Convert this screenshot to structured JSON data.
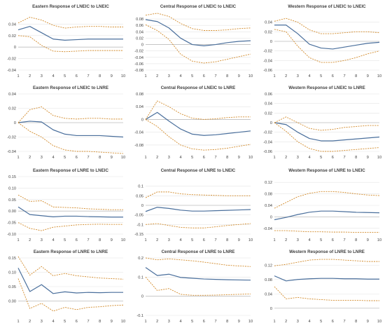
{
  "chart_data": [
    {
      "type": "line",
      "title": "Eastern Response of LNEIC to LNEIC",
      "categories": [
        "1",
        "2",
        "3",
        "4",
        "5",
        "6",
        "7",
        "8",
        "9",
        "10"
      ],
      "ylim": [
        -0.04,
        0.06
      ],
      "yticks": [
        -0.04,
        -0.02,
        0,
        0.02,
        0.04
      ],
      "ytick_labels": [
        "-0.04",
        "-0.02",
        "0",
        "0.02",
        "0.04"
      ],
      "grid": true,
      "series": [
        {
          "role": "response",
          "values": [
            0.03,
            0.036,
            0.025,
            0.014,
            0.012,
            0.013,
            0.014,
            0.014,
            0.014,
            0.014
          ]
        },
        {
          "role": "upper",
          "values": [
            0.042,
            0.052,
            0.047,
            0.038,
            0.033,
            0.035,
            0.036,
            0.036,
            0.035,
            0.035
          ]
        },
        {
          "role": "lower",
          "values": [
            0.02,
            0.018,
            0.003,
            -0.007,
            -0.008,
            -0.007,
            -0.006,
            -0.006,
            -0.006,
            -0.006
          ]
        }
      ]
    },
    {
      "type": "line",
      "title": "Central Response of LNEIC to LNEIC",
      "categories": [
        "1",
        "2",
        "3",
        "4",
        "5",
        "6",
        "7",
        "8",
        "9",
        "10"
      ],
      "ylim": [
        -0.08,
        0.1
      ],
      "yticks": [
        -0.08,
        -0.06,
        -0.04,
        -0.02,
        0,
        0.02,
        0.04,
        0.06,
        0.08
      ],
      "ytick_labels": [
        "-0.08",
        "-0.06",
        "-0.04",
        "-0.02",
        "0",
        "0.02",
        "0.04",
        "0.06",
        "0.08"
      ],
      "grid": true,
      "series": [
        {
          "role": "response",
          "values": [
            0.078,
            0.072,
            0.052,
            0.02,
            0.0,
            -0.004,
            0.0,
            0.006,
            0.01,
            0.012
          ]
        },
        {
          "role": "upper",
          "values": [
            0.092,
            0.098,
            0.088,
            0.066,
            0.05,
            0.044,
            0.044,
            0.046,
            0.05,
            0.052
          ]
        },
        {
          "role": "lower",
          "values": [
            0.062,
            0.044,
            0.016,
            -0.03,
            -0.052,
            -0.058,
            -0.054,
            -0.046,
            -0.038,
            -0.03
          ]
        }
      ]
    },
    {
      "type": "line",
      "title": "Western Response of LNEIC to LNEIC",
      "categories": [
        "1",
        "2",
        "3",
        "4",
        "5",
        "6",
        "7",
        "8",
        "9",
        "10"
      ],
      "ylim": [
        -0.06,
        0.06
      ],
      "yticks": [
        -0.06,
        -0.04,
        -0.02,
        0,
        0.02,
        0.04
      ],
      "ytick_labels": [
        "-0.06",
        "-0.04",
        "-0.02",
        "0",
        "0.02",
        "0.04"
      ],
      "grid": true,
      "series": [
        {
          "role": "response",
          "values": [
            0.034,
            0.034,
            0.016,
            -0.006,
            -0.014,
            -0.016,
            -0.012,
            -0.008,
            -0.004,
            -0.002
          ]
        },
        {
          "role": "upper",
          "values": [
            0.042,
            0.048,
            0.04,
            0.024,
            0.016,
            0.016,
            0.018,
            0.02,
            0.02,
            0.018
          ]
        },
        {
          "role": "lower",
          "values": [
            0.025,
            0.02,
            -0.01,
            -0.034,
            -0.044,
            -0.044,
            -0.04,
            -0.034,
            -0.026,
            -0.02
          ]
        }
      ]
    },
    {
      "type": "line",
      "title": "Eastern Response of LNEIC to LNRE",
      "categories": [
        "1",
        "2",
        "3",
        "4",
        "5",
        "6",
        "7",
        "8",
        "9",
        "10"
      ],
      "ylim": [
        -0.04,
        0.04
      ],
      "yticks": [
        -0.04,
        -0.02,
        0,
        0.02,
        0.04
      ],
      "ytick_labels": [
        "-0.04",
        "-0.02",
        "0",
        "0.02",
        "0.04"
      ],
      "grid": true,
      "series": [
        {
          "role": "response",
          "values": [
            0,
            0.002,
            0.001,
            -0.01,
            -0.016,
            -0.018,
            -0.018,
            -0.018,
            -0.019,
            -0.02
          ]
        },
        {
          "role": "upper",
          "values": [
            0,
            0.018,
            0.022,
            0.01,
            0.006,
            0.005,
            0.006,
            0.006,
            0.005,
            0.005
          ]
        },
        {
          "role": "lower",
          "values": [
            0,
            -0.012,
            -0.02,
            -0.032,
            -0.038,
            -0.04,
            -0.04,
            -0.041,
            -0.042,
            -0.043
          ]
        }
      ]
    },
    {
      "type": "line",
      "title": "Central Response of LNEIC to LNRE",
      "categories": [
        "1",
        "2",
        "3",
        "4",
        "5",
        "6",
        "7",
        "8",
        "9",
        "10"
      ],
      "ylim": [
        -0.1,
        0.08
      ],
      "yticks": [
        -0.08,
        -0.04,
        0,
        0.04,
        0.08
      ],
      "ytick_labels": [
        "-0.08",
        "-0.04",
        "0",
        "0.04",
        "0.08"
      ],
      "grid": true,
      "series": [
        {
          "role": "response",
          "values": [
            0,
            0.022,
            -0.005,
            -0.03,
            -0.046,
            -0.05,
            -0.048,
            -0.044,
            -0.04,
            -0.036
          ]
        },
        {
          "role": "upper",
          "values": [
            0,
            0.058,
            0.04,
            0.018,
            0.004,
            0.0,
            0.002,
            0.006,
            0.008,
            0.008
          ]
        },
        {
          "role": "lower",
          "values": [
            0,
            -0.022,
            -0.054,
            -0.08,
            -0.092,
            -0.096,
            -0.094,
            -0.09,
            -0.084,
            -0.078
          ]
        }
      ]
    },
    {
      "type": "line",
      "title": "Western Response of LNEIC to LNRE",
      "categories": [
        "1",
        "2",
        "3",
        "4",
        "5",
        "6",
        "7",
        "8",
        "9",
        "10"
      ],
      "ylim": [
        -0.06,
        0.06
      ],
      "yticks": [
        -0.06,
        -0.04,
        -0.02,
        0,
        0.02,
        0.04,
        0.06
      ],
      "ytick_labels": [
        "-0.06",
        "-0.04",
        "-0.02",
        "0",
        "0.02",
        "0.04",
        "0.06"
      ],
      "grid": true,
      "series": [
        {
          "role": "response",
          "values": [
            0,
            -0.004,
            -0.02,
            -0.033,
            -0.038,
            -0.038,
            -0.036,
            -0.034,
            -0.032,
            -0.03
          ]
        },
        {
          "role": "upper",
          "values": [
            0,
            0.012,
            0.0,
            -0.012,
            -0.016,
            -0.014,
            -0.01,
            -0.008,
            -0.006,
            -0.006
          ]
        },
        {
          "role": "lower",
          "values": [
            0,
            -0.018,
            -0.04,
            -0.054,
            -0.06,
            -0.06,
            -0.058,
            -0.056,
            -0.054,
            -0.052
          ]
        }
      ]
    },
    {
      "type": "line",
      "title": "Eastern Response of LNRE to LNEIC",
      "categories": [
        "1",
        "2",
        "3",
        "4",
        "5",
        "6",
        "7",
        "8",
        "9",
        "10"
      ],
      "ylim": [
        -0.1,
        0.15
      ],
      "yticks": [
        -0.1,
        -0.05,
        0,
        0.05,
        0.1,
        0.15
      ],
      "ytick_labels": [
        "-0.10",
        "-0.05",
        "0.00",
        "0.05",
        "0.10",
        "0.15"
      ],
      "grid": true,
      "series": [
        {
          "role": "response",
          "values": [
            0.018,
            -0.015,
            -0.02,
            -0.025,
            -0.022,
            -0.022,
            -0.024,
            -0.025,
            -0.026,
            -0.026
          ]
        },
        {
          "role": "upper",
          "values": [
            0.07,
            0.042,
            0.045,
            0.018,
            0.016,
            0.014,
            0.01,
            0.008,
            0.006,
            0.006
          ]
        },
        {
          "role": "lower",
          "values": [
            -0.05,
            -0.075,
            -0.085,
            -0.07,
            -0.065,
            -0.06,
            -0.058,
            -0.057,
            -0.058,
            -0.058
          ]
        }
      ]
    },
    {
      "type": "line",
      "title": "Central Response of LNRE to LNEIC",
      "categories": [
        "1",
        "2",
        "3",
        "4",
        "5",
        "6",
        "7",
        "8",
        "9",
        "10"
      ],
      "ylim": [
        -0.15,
        0.15
      ],
      "yticks": [
        -0.15,
        -0.1,
        -0.05,
        0,
        0.05,
        0.1
      ],
      "ytick_labels": [
        "-0.15",
        "-0.1",
        "-0.05",
        "0",
        "0.05",
        "0.1"
      ],
      "grid": true,
      "series": [
        {
          "role": "response",
          "values": [
            -0.032,
            -0.01,
            -0.016,
            -0.025,
            -0.03,
            -0.03,
            -0.028,
            -0.026,
            -0.024,
            -0.022
          ]
        },
        {
          "role": "upper",
          "values": [
            0.04,
            0.07,
            0.07,
            0.06,
            0.056,
            0.054,
            0.052,
            0.05,
            0.05,
            0.05
          ]
        },
        {
          "role": "lower",
          "values": [
            -0.1,
            -0.095,
            -0.105,
            -0.115,
            -0.118,
            -0.118,
            -0.112,
            -0.105,
            -0.1,
            -0.095
          ]
        }
      ]
    },
    {
      "type": "line",
      "title": "Western Response of LNRE to LNEIC",
      "categories": [
        "1",
        "2",
        "3",
        "4",
        "5",
        "6",
        "7",
        "8",
        "9",
        "10"
      ],
      "ylim": [
        -0.06,
        0.14
      ],
      "yticks": [
        -0.04,
        0,
        0.04,
        0.08,
        0.12
      ],
      "ytick_labels": [
        "-0.04",
        "0",
        "0.04",
        "0.08",
        "0.12"
      ],
      "grid": true,
      "series": [
        {
          "role": "response",
          "values": [
            -0.01,
            -0.002,
            0.008,
            0.016,
            0.02,
            0.02,
            0.018,
            0.016,
            0.015,
            0.014
          ]
        },
        {
          "role": "upper",
          "values": [
            0.03,
            0.05,
            0.07,
            0.082,
            0.088,
            0.088,
            0.085,
            0.08,
            0.076,
            0.074
          ]
        },
        {
          "role": "lower",
          "values": [
            -0.048,
            -0.048,
            -0.05,
            -0.052,
            -0.052,
            -0.053,
            -0.053,
            -0.054,
            -0.054,
            -0.054
          ]
        }
      ]
    },
    {
      "type": "line",
      "title": "Eastern Response of LNRE to LNRE",
      "categories": [
        "1",
        "2",
        "3",
        "4",
        "5",
        "6",
        "7",
        "8",
        "9",
        "10"
      ],
      "ylim": [
        -0.05,
        0.15
      ],
      "yticks": [
        0,
        0.05,
        0.1,
        0.15
      ],
      "ytick_labels": [
        "0.00",
        "0.05",
        "0.10",
        "0.15"
      ],
      "grid": true,
      "series": [
        {
          "role": "response",
          "values": [
            0.115,
            0.033,
            0.057,
            0.026,
            0.032,
            0.028,
            0.03,
            0.029,
            0.03,
            0.03
          ]
        },
        {
          "role": "upper",
          "values": [
            0.155,
            0.09,
            0.12,
            0.088,
            0.096,
            0.088,
            0.084,
            0.08,
            0.078,
            0.076
          ]
        },
        {
          "role": "lower",
          "values": [
            0.078,
            -0.026,
            -0.008,
            -0.035,
            -0.022,
            -0.03,
            -0.022,
            -0.02,
            -0.016,
            -0.014
          ]
        }
      ]
    },
    {
      "type": "line",
      "title": "Central Response of LNRE to LNRE",
      "categories": [
        "1",
        "2",
        "3",
        "4",
        "5",
        "6",
        "7",
        "8",
        "9",
        "10"
      ],
      "ylim": [
        -0.1,
        0.2
      ],
      "yticks": [
        -0.1,
        0,
        0.1,
        0.2
      ],
      "ytick_labels": [
        "-0.1",
        "0",
        "0.1",
        "0.2"
      ],
      "grid": true,
      "series": [
        {
          "role": "response",
          "values": [
            0.15,
            0.108,
            0.115,
            0.098,
            0.094,
            0.09,
            0.088,
            0.086,
            0.085,
            0.084
          ]
        },
        {
          "role": "upper",
          "values": [
            0.2,
            0.19,
            0.195,
            0.19,
            0.185,
            0.178,
            0.17,
            0.162,
            0.158,
            0.155
          ]
        },
        {
          "role": "lower",
          "values": [
            0.1,
            0.03,
            0.04,
            0.01,
            0.005,
            0.005,
            0.006,
            0.008,
            0.01,
            0.012
          ]
        }
      ]
    },
    {
      "type": "line",
      "title": "Western Response of LNRE to LNRE",
      "categories": [
        "1",
        "2",
        "3",
        "4",
        "5",
        "6",
        "7",
        "8",
        "9",
        "10"
      ],
      "ylim": [
        -0.02,
        0.14
      ],
      "yticks": [
        0,
        0.04,
        0.08,
        0.12
      ],
      "ytick_labels": [
        "0",
        "0.04",
        "0.08",
        "0.12"
      ],
      "grid": true,
      "series": [
        {
          "role": "response",
          "values": [
            0.09,
            0.076,
            0.08,
            0.082,
            0.083,
            0.083,
            0.082,
            0.082,
            0.081,
            0.081
          ]
        },
        {
          "role": "upper",
          "values": [
            0.118,
            0.122,
            0.128,
            0.134,
            0.136,
            0.136,
            0.134,
            0.132,
            0.13,
            0.13
          ]
        },
        {
          "role": "lower",
          "values": [
            0.06,
            0.026,
            0.03,
            0.026,
            0.024,
            0.022,
            0.022,
            0.022,
            0.021,
            0.021
          ]
        }
      ]
    }
  ],
  "colors": {
    "response": "#4a6f9c",
    "band": "#d28a2a",
    "grid": "#e3e3e3",
    "text": "#404040",
    "axis": "#bfbfbf"
  }
}
